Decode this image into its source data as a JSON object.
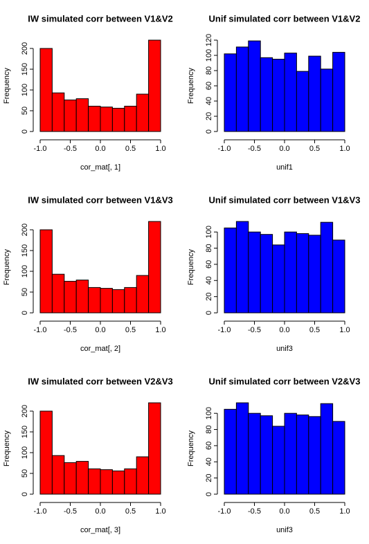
{
  "chart_data": [
    {
      "type": "histogram",
      "title": "IW simulated corr between V1&V2",
      "xlabel": "cor_mat[, 1]",
      "ylabel": "Frequency",
      "color": "#ff0000",
      "bins": [
        -1.0,
        -0.8,
        -0.6,
        -0.4,
        -0.2,
        0.0,
        0.2,
        0.4,
        0.6,
        0.8,
        1.0
      ],
      "counts": [
        200,
        93,
        76,
        79,
        61,
        59,
        56,
        61,
        90,
        220
      ],
      "xlim": [
        -1,
        1
      ],
      "xticks": [
        {
          "value": -1,
          "label": "-1.0"
        },
        -0.5,
        {
          "value": 0,
          "label": "0.0"
        },
        0.5,
        {
          "value": 1,
          "label": "1.0"
        }
      ],
      "ylim": [
        0,
        220
      ],
      "yticks": [
        0,
        50,
        100,
        150,
        200
      ]
    },
    {
      "type": "histogram",
      "title": "Unif simulated corr between V1&V2",
      "xlabel": "unif1",
      "ylabel": "Frequency",
      "color": "#0000ff",
      "bins": [
        -1.0,
        -0.8,
        -0.6,
        -0.4,
        -0.2,
        0.0,
        0.2,
        0.4,
        0.6,
        0.8,
        1.0
      ],
      "counts": [
        102,
        111,
        119,
        97,
        95,
        103,
        79,
        99,
        82,
        104
      ],
      "xlim": [
        -1,
        1
      ],
      "xticks": [
        {
          "value": -1,
          "label": "-1.0"
        },
        -0.5,
        {
          "value": 0,
          "label": "0.0"
        },
        0.5,
        {
          "value": 1,
          "label": "1.0"
        }
      ],
      "ylim": [
        0,
        120
      ],
      "yticks": [
        0,
        20,
        40,
        60,
        80,
        100,
        120
      ]
    },
    {
      "type": "histogram",
      "title": "IW simulated corr between V1&V3",
      "xlabel": "cor_mat[, 2]",
      "ylabel": "Frequency",
      "color": "#ff0000",
      "bins": [
        -1.0,
        -0.8,
        -0.6,
        -0.4,
        -0.2,
        0.0,
        0.2,
        0.4,
        0.6,
        0.8,
        1.0
      ],
      "counts": [
        200,
        93,
        76,
        79,
        61,
        59,
        56,
        61,
        90,
        220
      ],
      "xlim": [
        -1,
        1
      ],
      "xticks": [
        {
          "value": -1,
          "label": "-1.0"
        },
        -0.5,
        {
          "value": 0,
          "label": "0.0"
        },
        0.5,
        {
          "value": 1,
          "label": "1.0"
        }
      ],
      "ylim": [
        0,
        220
      ],
      "yticks": [
        0,
        50,
        100,
        150,
        200
      ]
    },
    {
      "type": "histogram",
      "title": "Unif simulated corr between V1&V3",
      "xlabel": "unif3",
      "ylabel": "Frequency",
      "color": "#0000ff",
      "bins": [
        -1.0,
        -0.8,
        -0.6,
        -0.4,
        -0.2,
        0.0,
        0.2,
        0.4,
        0.6,
        0.8,
        1.0
      ],
      "counts": [
        105,
        113,
        100,
        97,
        84,
        100,
        98,
        96,
        112,
        90
      ],
      "xlim": [
        -1,
        1
      ],
      "xticks": [
        {
          "value": -1,
          "label": "-1.0"
        },
        -0.5,
        {
          "value": 0,
          "label": "0.0"
        },
        0.5,
        {
          "value": 1,
          "label": "1.0"
        }
      ],
      "ylim": [
        0,
        113
      ],
      "yticks": [
        0,
        20,
        40,
        60,
        80,
        100
      ]
    },
    {
      "type": "histogram",
      "title": "IW simulated corr between V2&V3",
      "xlabel": "cor_mat[, 3]",
      "ylabel": "Frequency",
      "color": "#ff0000",
      "bins": [
        -1.0,
        -0.8,
        -0.6,
        -0.4,
        -0.2,
        0.0,
        0.2,
        0.4,
        0.6,
        0.8,
        1.0
      ],
      "counts": [
        200,
        93,
        76,
        79,
        61,
        59,
        56,
        61,
        90,
        220
      ],
      "xlim": [
        -1,
        1
      ],
      "xticks": [
        {
          "value": -1,
          "label": "-1.0"
        },
        -0.5,
        {
          "value": 0,
          "label": "0.0"
        },
        0.5,
        {
          "value": 1,
          "label": "1.0"
        }
      ],
      "ylim": [
        0,
        220
      ],
      "yticks": [
        0,
        50,
        100,
        150,
        200
      ]
    },
    {
      "type": "histogram",
      "title": "Unif simulated corr between V2&V3",
      "xlabel": "unif3",
      "ylabel": "Frequency",
      "color": "#0000ff",
      "bins": [
        -1.0,
        -0.8,
        -0.6,
        -0.4,
        -0.2,
        0.0,
        0.2,
        0.4,
        0.6,
        0.8,
        1.0
      ],
      "counts": [
        105,
        113,
        100,
        97,
        84,
        100,
        98,
        96,
        112,
        90
      ],
      "xlim": [
        -1,
        1
      ],
      "xticks": [
        {
          "value": -1,
          "label": "-1.0"
        },
        -0.5,
        {
          "value": 0,
          "label": "0.0"
        },
        0.5,
        {
          "value": 1,
          "label": "1.0"
        }
      ],
      "ylim": [
        0,
        113
      ],
      "yticks": [
        0,
        20,
        40,
        60,
        80,
        100
      ]
    }
  ]
}
